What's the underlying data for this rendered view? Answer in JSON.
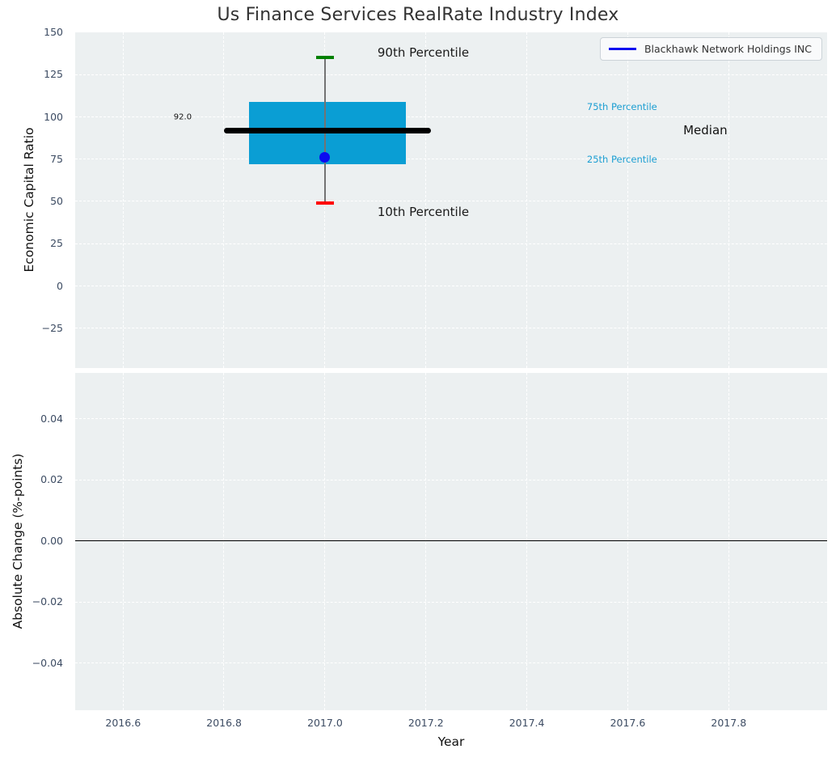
{
  "title": "Us Finance Services RealRate Industry Index",
  "legend": {
    "label": "Blackhawk Network Holdings INC"
  },
  "colors": {
    "axes_bg": "#ecf0f1",
    "grid": "#ffffff",
    "tick_label": "#3d4c63",
    "box_fill": "#0a9ed4",
    "median_line": "#000000",
    "whisker": "#737373",
    "p90_cap": "#008000",
    "p10_cap": "#ff0000",
    "company_dot": "#0b0bf0",
    "legend_line": "#0b0bf0",
    "percentile_text": "#1b9ed2",
    "zero_line": "#000000"
  },
  "chart_data": [
    {
      "type": "boxplot",
      "title": "Us Finance Services RealRate Industry Index",
      "xlabel": "Year",
      "ylabel": "Economic Capital Ratio",
      "xlim": [
        2016.505,
        2017.995
      ],
      "ylim": [
        -48.4,
        150
      ],
      "grid": true,
      "xticks": [
        "2016.6",
        "2016.8",
        "2017.0",
        "2017.2",
        "2017.4",
        "2017.6",
        "2017.8"
      ],
      "xtick_values": [
        2016.6,
        2016.8,
        2017.0,
        2017.2,
        2017.4,
        2017.6,
        2017.8
      ],
      "yticks": [
        "150",
        "125",
        "100",
        "75",
        "50",
        "25",
        "0",
        "−25"
      ],
      "ytick_values": [
        150,
        125,
        100,
        75,
        50,
        25,
        0,
        -25
      ],
      "box": {
        "x": 2017.0,
        "x_left": 2016.85,
        "x_right": 2017.16,
        "median_x_left": 2016.8,
        "median_x_right": 2017.21,
        "p10": 49,
        "p25": 72,
        "median": 92.0,
        "p75": 109,
        "p90": 135,
        "median_label": "92.0"
      },
      "company_point": {
        "name": "Blackhawk Network Holdings INC",
        "x": 2017.0,
        "y": 76
      },
      "annotations": [
        {
          "text": "90th Percentile",
          "x": 2017.104,
          "y": 138,
          "color": "#1a1a1a",
          "size": 15,
          "anchor": "left"
        },
        {
          "text": "10th Percentile",
          "x": 2017.104,
          "y": 44,
          "color": "#1a1a1a",
          "size": 15,
          "anchor": "left"
        },
        {
          "text": "75th Percentile",
          "x": 2017.519,
          "y": 106,
          "color": "#1b9ed2",
          "size": 11.5,
          "anchor": "left"
        },
        {
          "text": "25th Percentile",
          "x": 2017.519,
          "y": 75,
          "color": "#1b9ed2",
          "size": 11.5,
          "anchor": "left"
        },
        {
          "text": "Median",
          "x": 2017.71,
          "y": 92,
          "color": "#111111",
          "size": 15,
          "anchor": "left"
        },
        {
          "text": "92.0",
          "x": 2016.718,
          "y": 100,
          "color": "#111111",
          "size": 10,
          "anchor": "center"
        }
      ],
      "legend_position": "upper right"
    },
    {
      "type": "line",
      "xlabel": "Year",
      "ylabel": "Absolute Change (%-points)",
      "ylim": [
        -0.0554,
        0.0551
      ],
      "grid": true,
      "yticks": [
        "0.04",
        "0.02",
        "0.00",
        "−0.02",
        "−0.04"
      ],
      "ytick_values": [
        0.04,
        0.02,
        0.0,
        -0.02,
        -0.04
      ],
      "zero_line_y": 0.0,
      "series": []
    }
  ]
}
